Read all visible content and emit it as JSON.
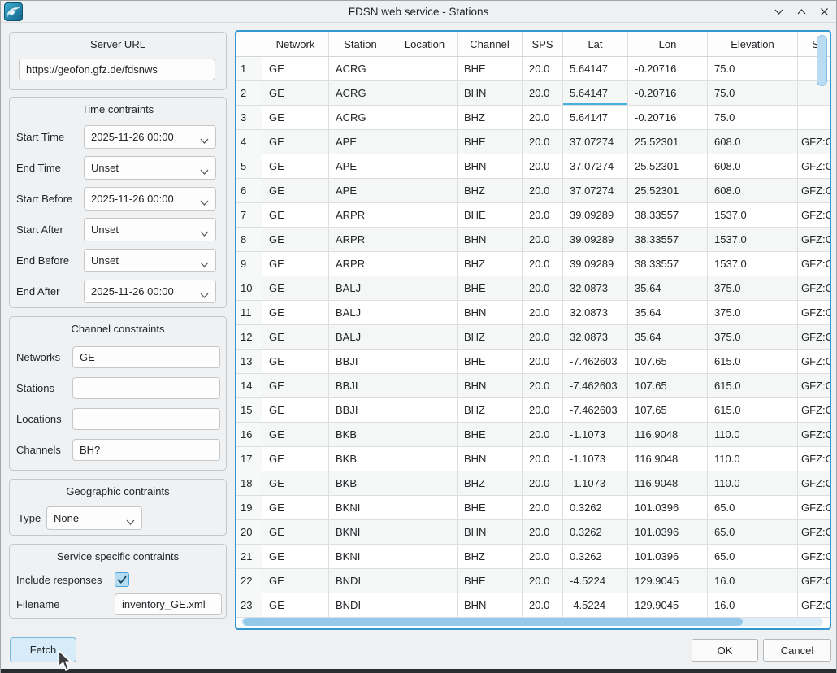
{
  "window": {
    "title": "FDSN web service - Stations",
    "icon": "seismic-wave-app-icon",
    "controls": {
      "minimize": "chevron-down",
      "maximize": "chevron-up",
      "close": "x"
    }
  },
  "sidebar": {
    "server": {
      "title": "Server URL",
      "value": "https://geofon.gfz.de/fdsnws"
    },
    "time": {
      "title": "Time contraints",
      "fields": [
        {
          "label": "Start Time",
          "value": "2025-11-26 00:00"
        },
        {
          "label": "End Time",
          "value": "Unset"
        },
        {
          "label": "Start Before",
          "value": "2025-11-26 00:00"
        },
        {
          "label": "Start After",
          "value": "Unset"
        },
        {
          "label": "End Before",
          "value": "Unset"
        },
        {
          "label": "End After",
          "value": "2025-11-26 00:00"
        }
      ]
    },
    "channel": {
      "title": "Channel constraints",
      "fields": [
        {
          "label": "Networks",
          "value": "GE"
        },
        {
          "label": "Stations",
          "value": ""
        },
        {
          "label": "Locations",
          "value": ""
        },
        {
          "label": "Channels",
          "value": "BH?"
        }
      ]
    },
    "geographic": {
      "title": "Geographic contraints",
      "type_label": "Type",
      "type_value": "None"
    },
    "service": {
      "title": "Service specific contraints",
      "include_label": "Include responses",
      "include_checked": true,
      "filename_label": "Filename",
      "filename_value": "inventory_GE.xml"
    }
  },
  "table": {
    "columns": [
      "",
      "Network",
      "Station",
      "Location",
      "Channel",
      "SPS",
      "Lat",
      "Lon",
      "Elevation",
      "S"
    ],
    "current_cell": {
      "row": 2,
      "col": "lat"
    },
    "rows": [
      [
        "GE",
        "ACRG",
        "",
        "BHE",
        "20.0",
        "5.64147",
        "-0.20716",
        "75.0",
        ""
      ],
      [
        "GE",
        "ACRG",
        "",
        "BHN",
        "20.0",
        "5.64147",
        "-0.20716",
        "75.0",
        ""
      ],
      [
        "GE",
        "ACRG",
        "",
        "BHZ",
        "20.0",
        "5.64147",
        "-0.20716",
        "75.0",
        ""
      ],
      [
        "GE",
        "APE",
        "",
        "BHE",
        "20.0",
        "37.07274",
        "25.52301",
        "608.0",
        "GFZ:C"
      ],
      [
        "GE",
        "APE",
        "",
        "BHN",
        "20.0",
        "37.07274",
        "25.52301",
        "608.0",
        "GFZ:C"
      ],
      [
        "GE",
        "APE",
        "",
        "BHZ",
        "20.0",
        "37.07274",
        "25.52301",
        "608.0",
        "GFZ:C"
      ],
      [
        "GE",
        "ARPR",
        "",
        "BHE",
        "20.0",
        "39.09289",
        "38.33557",
        "1537.0",
        "GFZ:C"
      ],
      [
        "GE",
        "ARPR",
        "",
        "BHN",
        "20.0",
        "39.09289",
        "38.33557",
        "1537.0",
        "GFZ:C"
      ],
      [
        "GE",
        "ARPR",
        "",
        "BHZ",
        "20.0",
        "39.09289",
        "38.33557",
        "1537.0",
        "GFZ:C"
      ],
      [
        "GE",
        "BALJ",
        "",
        "BHE",
        "20.0",
        "32.0873",
        "35.64",
        "375.0",
        "GFZ:C"
      ],
      [
        "GE",
        "BALJ",
        "",
        "BHN",
        "20.0",
        "32.0873",
        "35.64",
        "375.0",
        "GFZ:C"
      ],
      [
        "GE",
        "BALJ",
        "",
        "BHZ",
        "20.0",
        "32.0873",
        "35.64",
        "375.0",
        "GFZ:C"
      ],
      [
        "GE",
        "BBJI",
        "",
        "BHE",
        "20.0",
        "-7.462603",
        "107.65",
        "615.0",
        "GFZ:C"
      ],
      [
        "GE",
        "BBJI",
        "",
        "BHN",
        "20.0",
        "-7.462603",
        "107.65",
        "615.0",
        "GFZ:C"
      ],
      [
        "GE",
        "BBJI",
        "",
        "BHZ",
        "20.0",
        "-7.462603",
        "107.65",
        "615.0",
        "GFZ:C"
      ],
      [
        "GE",
        "BKB",
        "",
        "BHE",
        "20.0",
        "-1.1073",
        "116.9048",
        "110.0",
        "GFZ:C"
      ],
      [
        "GE",
        "BKB",
        "",
        "BHN",
        "20.0",
        "-1.1073",
        "116.9048",
        "110.0",
        "GFZ:C"
      ],
      [
        "GE",
        "BKB",
        "",
        "BHZ",
        "20.0",
        "-1.1073",
        "116.9048",
        "110.0",
        "GFZ:C"
      ],
      [
        "GE",
        "BKNI",
        "",
        "BHE",
        "20.0",
        "0.3262",
        "101.0396",
        "65.0",
        "GFZ:C"
      ],
      [
        "GE",
        "BKNI",
        "",
        "BHN",
        "20.0",
        "0.3262",
        "101.0396",
        "65.0",
        "GFZ:C"
      ],
      [
        "GE",
        "BKNI",
        "",
        "BHZ",
        "20.0",
        "0.3262",
        "101.0396",
        "65.0",
        "GFZ:C"
      ],
      [
        "GE",
        "BNDI",
        "",
        "BHE",
        "20.0",
        "-4.5224",
        "129.9045",
        "16.0",
        "GFZ:C"
      ],
      [
        "GE",
        "BNDI",
        "",
        "BHN",
        "20.0",
        "-4.5224",
        "129.9045",
        "16.0",
        "GFZ:C"
      ]
    ]
  },
  "footer": {
    "fetch": "Fetch",
    "ok": "OK",
    "cancel": "Cancel"
  },
  "ui_colors": {
    "accent": "#3daee9",
    "table_border": "#3498d0",
    "scrollbar_thumb": "#94c9ea",
    "fetch_hover_bg": "#d7ebf8",
    "checkbox_bg": "#b6dcf4",
    "app_icon_teal": "#1d84ad"
  }
}
